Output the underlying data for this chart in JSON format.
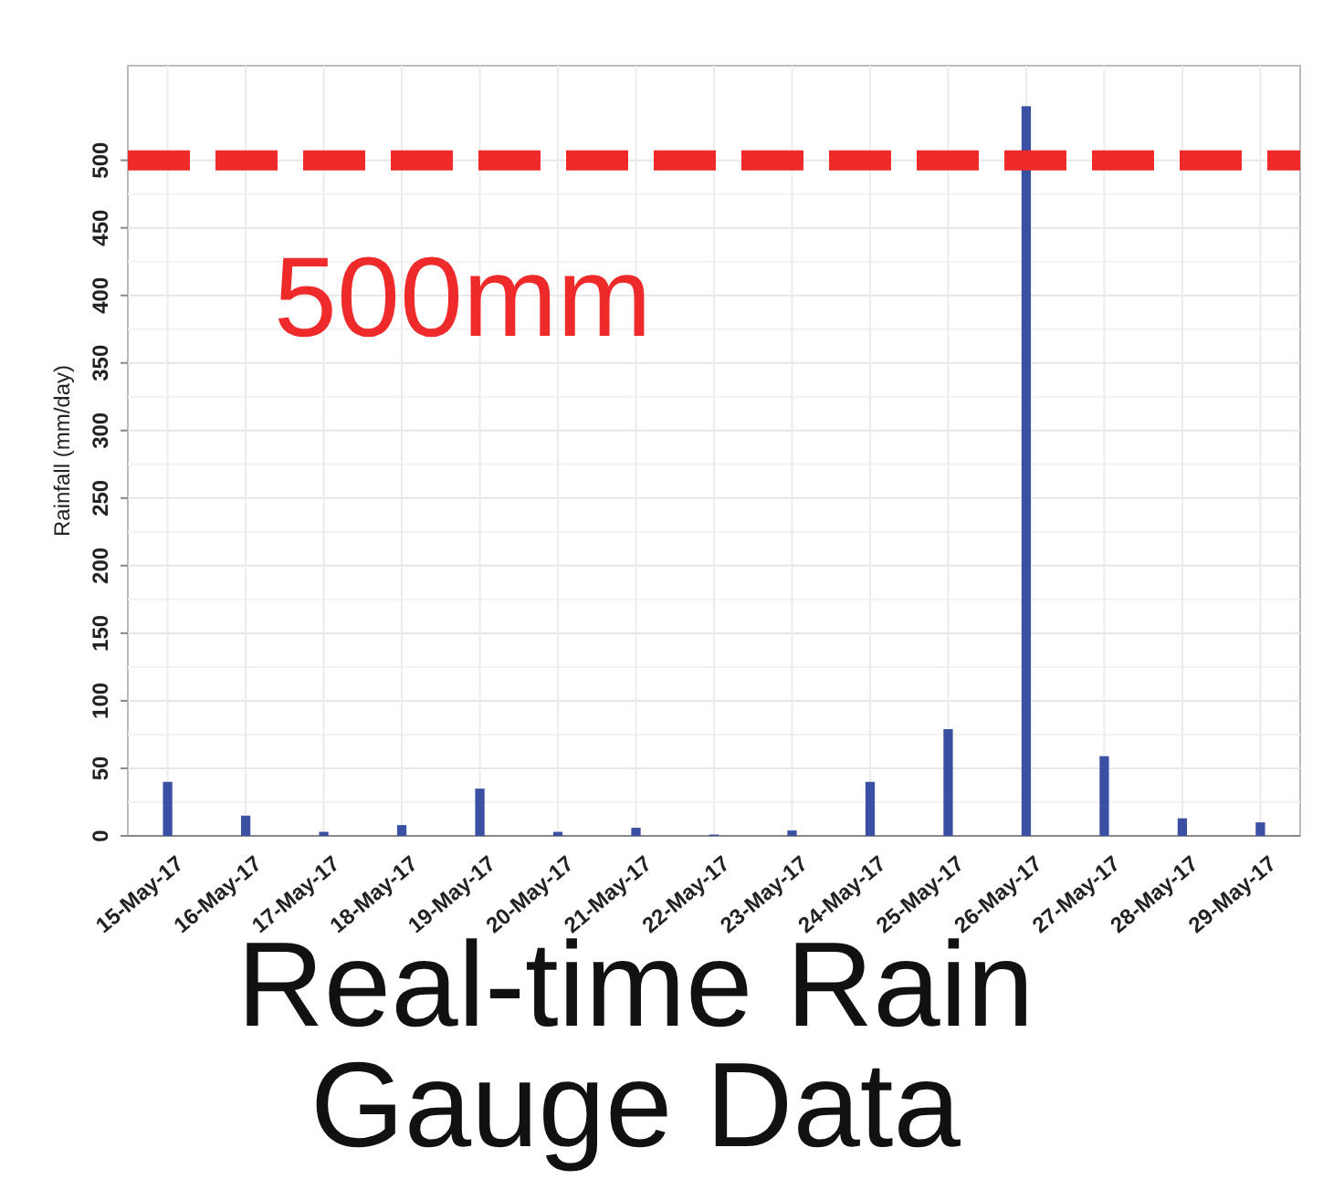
{
  "chart_data": {
    "type": "bar",
    "title": "Real-time Rain Gauge Data",
    "ylabel": "Rainfall (mm/day)",
    "categories": [
      "15-May-17",
      "16-May-17",
      "17-May-17",
      "18-May-17",
      "19-May-17",
      "20-May-17",
      "21-May-17",
      "22-May-17",
      "23-May-17",
      "24-May-17",
      "25-May-17",
      "26-May-17",
      "27-May-17",
      "28-May-17",
      "29-May-17"
    ],
    "values": [
      40,
      15,
      3,
      8,
      35,
      3,
      6,
      1,
      4,
      40,
      79,
      540,
      59,
      13,
      10
    ],
    "color": "#3a50a3",
    "ylim": [
      0,
      570
    ],
    "yticks": [
      0,
      50,
      100,
      150,
      200,
      250,
      300,
      350,
      400,
      450,
      500
    ],
    "grid": true,
    "ref_lines": [
      {
        "axis": "y",
        "value": 500,
        "label": "500mm",
        "color": "#ee2a2a",
        "line_style": "dashed"
      }
    ]
  }
}
